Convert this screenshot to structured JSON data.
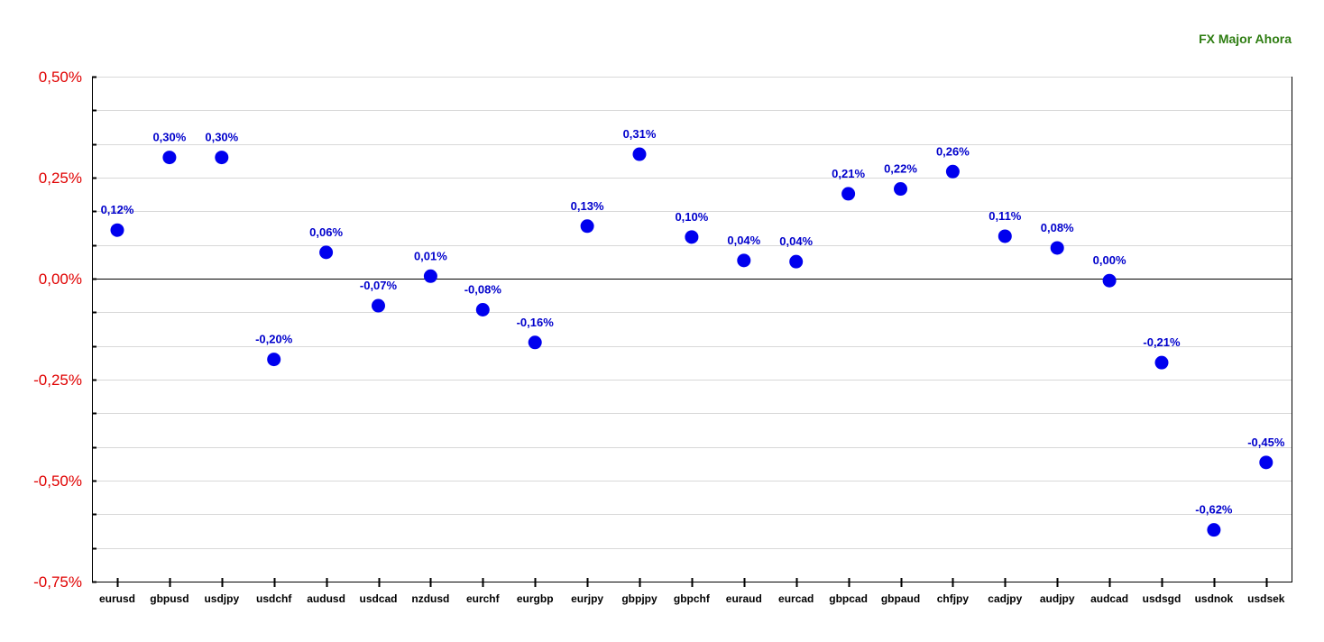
{
  "chart_data": {
    "type": "scatter",
    "title": "FX Major Ahora",
    "xlabel": "",
    "ylabel": "",
    "categories": [
      "eurusd",
      "gbpusd",
      "usdjpy",
      "usdchf",
      "audusd",
      "usdcad",
      "nzdusd",
      "eurchf",
      "eurgbp",
      "eurjpy",
      "gbpjpy",
      "gbpchf",
      "euraud",
      "eurcad",
      "gbpcad",
      "gbpaud",
      "chfjpy",
      "cadjpy",
      "audjpy",
      "audcad",
      "usdsgd",
      "usdnok",
      "usdsek"
    ],
    "values": [
      0.12,
      0.3,
      0.3,
      -0.2,
      0.065,
      -0.067,
      0.006,
      -0.077,
      -0.158,
      0.13,
      0.308,
      0.103,
      0.045,
      0.042,
      0.21,
      0.222,
      0.265,
      0.105,
      0.076,
      -0.005,
      -0.208,
      -0.622,
      -0.455
    ],
    "labels": [
      "0,12%",
      "0,30%",
      "0,30%",
      "-0,20%",
      "0,06%",
      "-0,07%",
      "0,01%",
      "-0,08%",
      "-0,16%",
      "0,13%",
      "0,31%",
      "0,10%",
      "0,04%",
      "0,04%",
      "0,21%",
      "0,22%",
      "0,26%",
      "0,11%",
      "0,08%",
      "0,00%",
      "-0,21%",
      "-0,62%",
      "-0,45%"
    ],
    "ylim": [
      -0.75,
      0.5
    ],
    "yticks": [
      0.5,
      0.25,
      0.0,
      -0.25,
      -0.5,
      -0.75
    ],
    "ytick_labels": [
      "0,50%",
      "0,25%",
      "0,00%",
      "-0,25%",
      "-0,50%",
      "-0,75%"
    ],
    "minor_step": 0.083333,
    "grid": true,
    "zero_line": true,
    "legend": "none",
    "colors": {
      "marker": "#0000ee",
      "data_label": "#0000cc",
      "ytick_label": "#e00000",
      "title": "#2e7d12",
      "grid": "#d8d8d8",
      "axis": "#000000",
      "xtick_label": "#000000"
    }
  }
}
